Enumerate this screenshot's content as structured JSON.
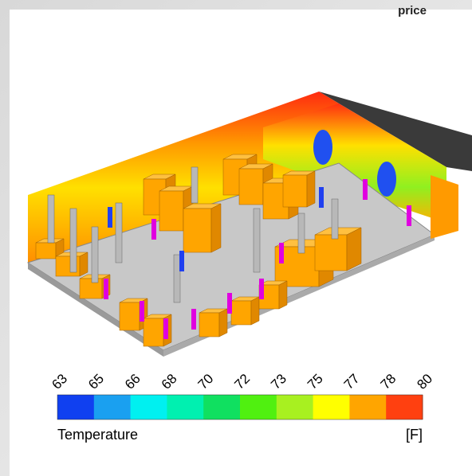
{
  "brand": "price",
  "colorbar": {
    "ticks": [
      63,
      65,
      66,
      68,
      70,
      72,
      73,
      75,
      77,
      78,
      80
    ],
    "colors": [
      "#1040f0",
      "#1aa0f0",
      "#00f0f0",
      "#00f0b0",
      "#10e060",
      "#50f010",
      "#a8f020",
      "#ffff00",
      "#ffa500",
      "#ff4010"
    ],
    "label": "Temperature",
    "unit": "[F]"
  }
}
